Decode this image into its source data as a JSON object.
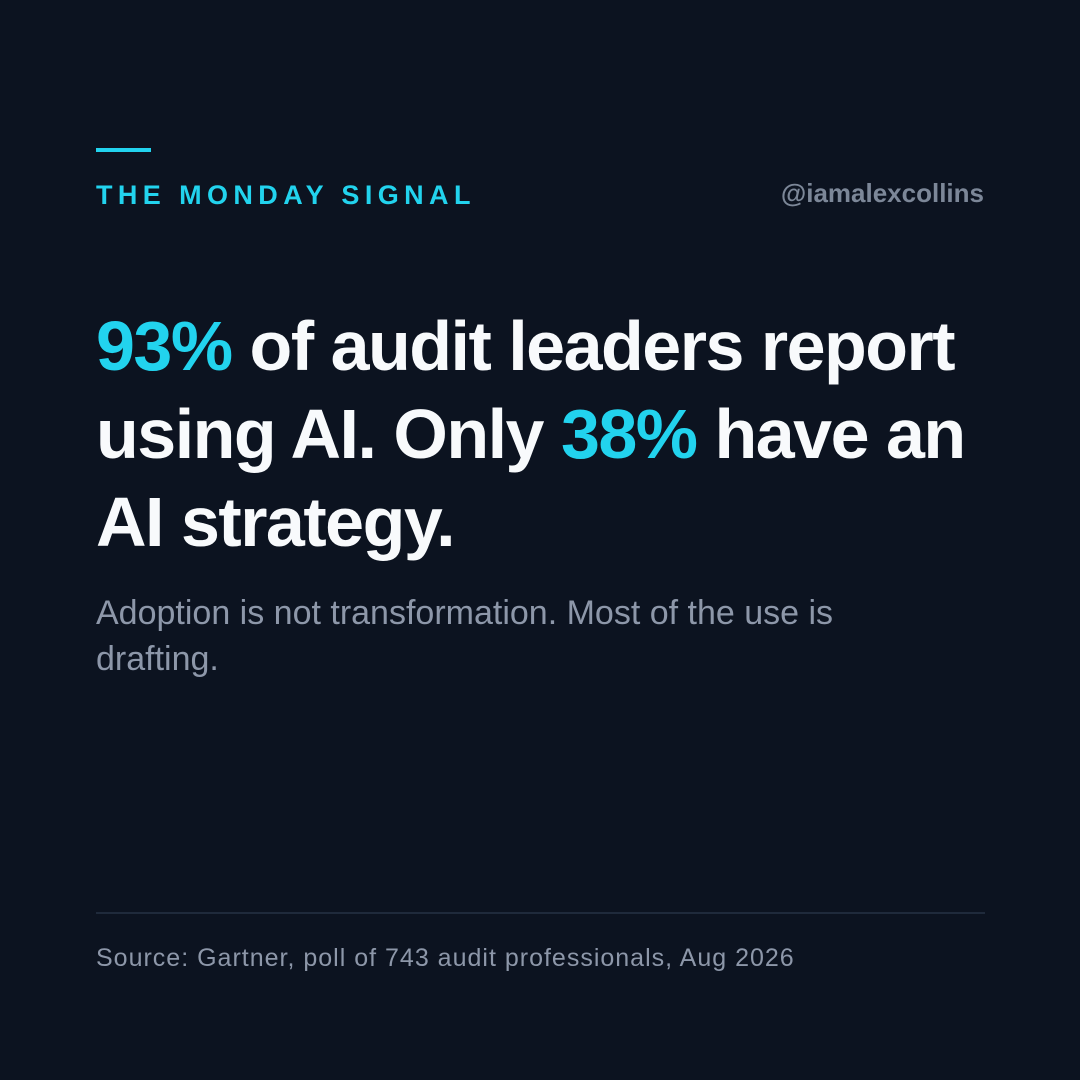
{
  "brand": {
    "series_name": "THE MONDAY SIGNAL",
    "handle": "@iamalexcollins"
  },
  "headline": {
    "stat_1": "93%",
    "text_1": " of audit leaders report using AI. Only ",
    "stat_2": "38%",
    "text_2": " have an AI strategy."
  },
  "subline": "Adoption is not transformation. Most of the use is drafting.",
  "footer": {
    "source": "Source: Gartner, poll of 743 audit professionals, Aug 2026"
  },
  "colors": {
    "background": "#0c1320",
    "accent": "#22d3ee",
    "headline_text": "#f8fafc",
    "muted_text": "#8d97a9",
    "handle_text": "#7c8798",
    "divider": "#1f2a3b"
  }
}
